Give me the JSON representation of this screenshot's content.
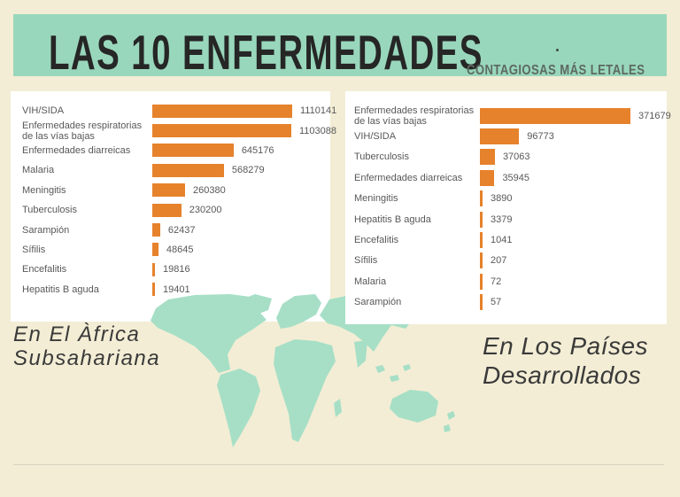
{
  "header": {
    "title": "LAS 10 ENFERMEDADES",
    "subtitle": "CONTAGIOSAS MÁS LETALES"
  },
  "captions": {
    "left": "En El Àfrica\nSubsahariana",
    "right": "En Los Países\nDesarrollados"
  },
  "chart_data": [
    {
      "type": "bar",
      "orientation": "horizontal",
      "region": "En El Àfrica Subsahariana",
      "categories": [
        "VIH/SIDA",
        "Enfermedades respiratorias de las vías bajas",
        "Enfermedades diarreicas",
        "Malaria",
        "Meningitis",
        "Tuberculosis",
        "Sarampión",
        "Sífilis",
        "Encefalitis",
        "Hepatitis B aguda"
      ],
      "values": [
        1110141,
        1103088,
        645176,
        568279,
        260380,
        230200,
        62437,
        48645,
        19816,
        19401
      ],
      "axis_max": 1110141,
      "value_labels": true,
      "grid": false,
      "legend": false
    },
    {
      "type": "bar",
      "orientation": "horizontal",
      "region": "En Los Países Desarrollados",
      "categories": [
        "Enfermedades respiratorias de las vías bajas",
        "VIH/SIDA",
        "Tuberculosis",
        "Enfermedades diarreicas",
        "Meningitis",
        "Hepatitis B aguda",
        "Encefalitis",
        "Sífilis",
        "Malaria",
        "Sarampión"
      ],
      "values": [
        371679,
        96773,
        37063,
        35945,
        3890,
        3379,
        1041,
        207,
        72,
        57
      ],
      "axis_max": 371679,
      "value_labels": true,
      "grid": false,
      "legend": false
    }
  ],
  "colors": {
    "background": "#F3EDD5",
    "header_band": "#99D7BC",
    "title_text": "#262626",
    "subtitle_text": "#5D6A62",
    "panel_background": "#FFFFFF",
    "bar_orange": "#E6822B",
    "label_text": "#58585A",
    "map_green": "#A6DFC6",
    "caption_text": "#3A3A3A",
    "divider": "#D9D4C2"
  }
}
